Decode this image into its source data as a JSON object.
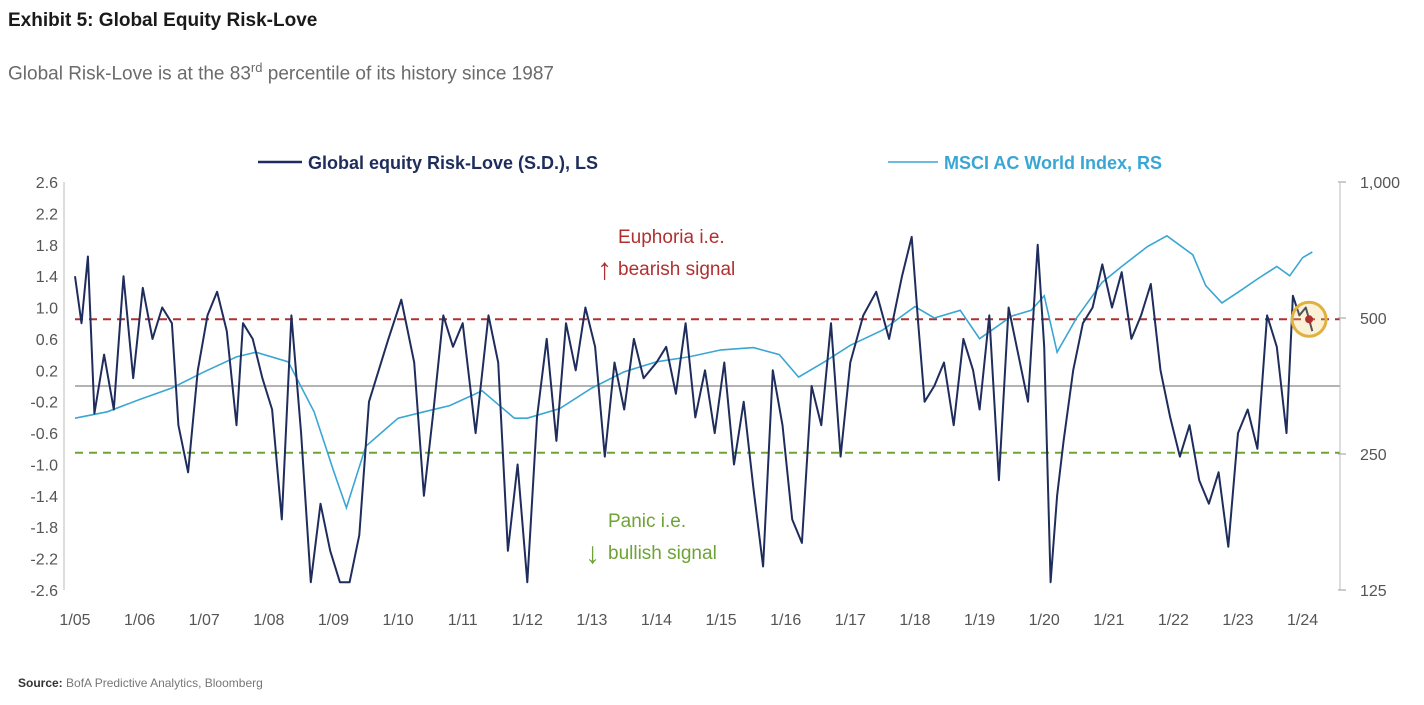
{
  "exhibit": {
    "title": "Exhibit 5: Global Equity Risk-Love",
    "subtitle_before": "Global Risk-Love is at the 83",
    "subtitle_sup": "rd",
    "subtitle_after": " percentile of its history since 1987",
    "source_label": "Source:",
    "source_text": " BofA Predictive Analytics, Bloomberg"
  },
  "colors": {
    "risk_love": "#1f2d5c",
    "msci": "#3aa6d4",
    "euphoria": "#b03030",
    "panic": "#6ea335",
    "axis_text": "#555555",
    "zero_line": "#9a9a9a",
    "highlight_circle": "#e0b040"
  },
  "chart_data": {
    "type": "line",
    "x_ticks": [
      "1/05",
      "1/06",
      "1/07",
      "1/08",
      "1/09",
      "1/10",
      "1/11",
      "1/12",
      "1/13",
      "1/14",
      "1/15",
      "1/16",
      "1/17",
      "1/18",
      "1/19",
      "1/20",
      "1/21",
      "1/22",
      "1/23",
      "1/24"
    ],
    "x_range": [
      2005.0,
      2024.3
    ],
    "left_axis": {
      "ticks": [
        "2.6",
        "2.2",
        "1.8",
        "1.4",
        "1.0",
        "0.6",
        "0.2",
        "-0.2",
        "-0.6",
        "-1.0",
        "-1.4",
        "-1.8",
        "-2.2",
        "-2.6"
      ],
      "range": [
        -2.6,
        2.6
      ]
    },
    "right_axis": {
      "ticks": [
        "1,000",
        "500",
        "250",
        "125"
      ],
      "tick_values": [
        1000,
        500,
        250,
        125
      ],
      "range": [
        125,
        1000
      ],
      "scale": "log"
    },
    "reference_lines": {
      "euphoria": 0.85,
      "panic": -0.85,
      "zero": 0
    },
    "annotations": {
      "euphoria_line1": "Euphoria i.e.",
      "euphoria_line2": "bearish signal",
      "panic_line1": "Panic i.e.",
      "panic_line2": "bullish signal"
    },
    "legend": "top",
    "series": [
      {
        "name": "Global equity Risk-Love (S.D.), LS",
        "axis": "left",
        "x": [
          2005.0,
          2005.1,
          2005.2,
          2005.3,
          2005.45,
          2005.6,
          2005.75,
          2005.9,
          2006.05,
          2006.2,
          2006.35,
          2006.5,
          2006.6,
          2006.75,
          2006.9,
          2007.05,
          2007.2,
          2007.35,
          2007.5,
          2007.6,
          2007.75,
          2007.9,
          2008.05,
          2008.2,
          2008.35,
          2008.5,
          2008.65,
          2008.8,
          2008.95,
          2009.1,
          2009.25,
          2009.4,
          2009.55,
          2009.7,
          2009.85,
          2010.05,
          2010.25,
          2010.4,
          2010.55,
          2010.7,
          2010.85,
          2011.0,
          2011.2,
          2011.4,
          2011.55,
          2011.7,
          2011.85,
          2012.0,
          2012.15,
          2012.3,
          2012.45,
          2012.6,
          2012.75,
          2012.9,
          2013.05,
          2013.2,
          2013.35,
          2013.5,
          2013.65,
          2013.8,
          2014.0,
          2014.15,
          2014.3,
          2014.45,
          2014.6,
          2014.75,
          2014.9,
          2015.05,
          2015.2,
          2015.35,
          2015.5,
          2015.65,
          2015.8,
          2015.95,
          2016.1,
          2016.25,
          2016.4,
          2016.55,
          2016.7,
          2016.85,
          2017.0,
          2017.2,
          2017.4,
          2017.6,
          2017.8,
          2017.95,
          2018.05,
          2018.15,
          2018.3,
          2018.45,
          2018.6,
          2018.75,
          2018.9,
          2019.0,
          2019.15,
          2019.3,
          2019.45,
          2019.6,
          2019.75,
          2019.9,
          2020.0,
          2020.1,
          2020.2,
          2020.3,
          2020.45,
          2020.6,
          2020.75,
          2020.9,
          2021.05,
          2021.2,
          2021.35,
          2021.5,
          2021.65,
          2021.8,
          2021.95,
          2022.1,
          2022.25,
          2022.4,
          2022.55,
          2022.7,
          2022.85,
          2023.0,
          2023.15,
          2023.3,
          2023.45,
          2023.6,
          2023.75,
          2023.85,
          2023.95,
          2024.05,
          2024.15
        ],
        "values": [
          1.4,
          0.8,
          1.65,
          -0.35,
          0.4,
          -0.3,
          1.4,
          0.1,
          1.25,
          0.6,
          1.0,
          0.8,
          -0.5,
          -1.1,
          0.2,
          0.9,
          1.2,
          0.7,
          -0.5,
          0.8,
          0.6,
          0.1,
          -0.3,
          -1.7,
          0.9,
          -0.6,
          -2.5,
          -1.5,
          -2.1,
          -2.5,
          -2.5,
          -1.9,
          -0.2,
          0.2,
          0.6,
          1.1,
          0.3,
          -1.4,
          -0.3,
          0.9,
          0.5,
          0.8,
          -0.6,
          0.9,
          0.3,
          -2.1,
          -1.0,
          -2.5,
          -0.4,
          0.6,
          -0.7,
          0.8,
          0.2,
          1.0,
          0.5,
          -0.9,
          0.3,
          -0.3,
          0.6,
          0.1,
          0.3,
          0.5,
          -0.1,
          0.8,
          -0.4,
          0.2,
          -0.6,
          0.3,
          -1.0,
          -0.2,
          -1.3,
          -2.3,
          0.2,
          -0.5,
          -1.7,
          -2.0,
          0.0,
          -0.5,
          0.8,
          -0.9,
          0.3,
          0.9,
          1.2,
          0.6,
          1.4,
          1.9,
          0.8,
          -0.2,
          0.0,
          0.3,
          -0.5,
          0.6,
          0.2,
          -0.3,
          0.9,
          -1.2,
          1.0,
          0.4,
          -0.2,
          1.8,
          0.5,
          -2.5,
          -1.4,
          -0.7,
          0.2,
          0.8,
          1.0,
          1.55,
          1.0,
          1.45,
          0.6,
          0.9,
          1.3,
          0.2,
          -0.4,
          -0.9,
          -0.5,
          -1.2,
          -1.5,
          -1.1,
          -2.05,
          -0.6,
          -0.3,
          -0.8,
          0.9,
          0.5,
          -0.6,
          1.15,
          0.9,
          1.0,
          0.7
        ]
      },
      {
        "name": "MSCI AC World Index, RS",
        "axis": "right",
        "x": [
          2005.0,
          2005.5,
          2006.0,
          2006.5,
          2007.0,
          2007.5,
          2007.8,
          2008.3,
          2008.7,
          2009.0,
          2009.2,
          2009.5,
          2010.0,
          2010.4,
          2010.8,
          2011.3,
          2011.8,
          2012.0,
          2012.5,
          2013.0,
          2013.5,
          2014.0,
          2014.5,
          2015.0,
          2015.5,
          2015.9,
          2016.2,
          2016.6,
          2017.0,
          2017.5,
          2018.0,
          2018.3,
          2018.7,
          2019.0,
          2019.5,
          2019.8,
          2020.0,
          2020.2,
          2020.5,
          2020.9,
          2021.2,
          2021.6,
          2021.9,
          2022.3,
          2022.5,
          2022.75,
          2023.0,
          2023.3,
          2023.6,
          2023.8,
          2024.0,
          2024.15
        ],
        "values": [
          300,
          310,
          330,
          350,
          380,
          410,
          420,
          400,
          310,
          230,
          190,
          260,
          300,
          310,
          320,
          345,
          300,
          300,
          315,
          350,
          380,
          400,
          410,
          425,
          430,
          415,
          370,
          400,
          435,
          470,
          530,
          500,
          520,
          450,
          505,
          520,
          560,
          420,
          500,
          600,
          650,
          720,
          760,
          690,
          590,
          540,
          570,
          610,
          650,
          620,
          680,
          700
        ]
      }
    ],
    "highlight": {
      "x": 2024.1,
      "y": 0.85
    }
  }
}
